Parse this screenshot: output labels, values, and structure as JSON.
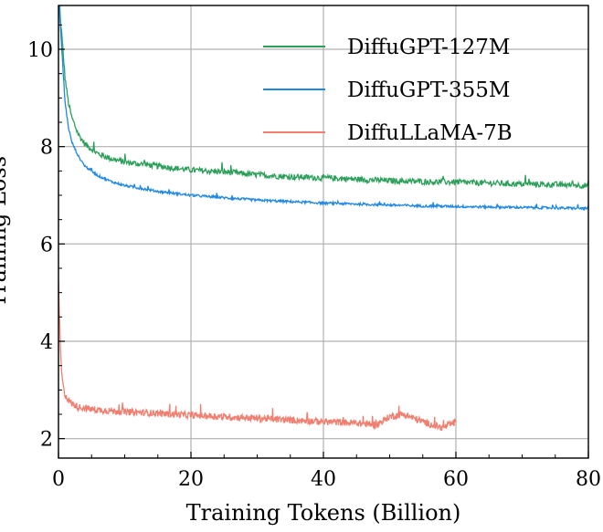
{
  "chart_data": {
    "type": "line",
    "title": "",
    "xlabel": "Training Tokens (Billion)",
    "ylabel": "Training Loss",
    "xlim": [
      0,
      80
    ],
    "ylim": [
      1.6,
      10.9
    ],
    "x_ticks": [
      0,
      20,
      40,
      60,
      80
    ],
    "y_ticks": [
      2,
      4,
      6,
      8,
      10
    ],
    "grid": true,
    "legend_position": "top-right",
    "series": [
      {
        "name": "DiffuGPT-127M",
        "color": "#2ca05a",
        "x": [
          0.1,
          0.5,
          1,
          1.5,
          2,
          3,
          4,
          6,
          8,
          10,
          15,
          20,
          25,
          30,
          35,
          40,
          45,
          50,
          55,
          60,
          65,
          70,
          75,
          80
        ],
        "y": [
          10.9,
          10.3,
          9.4,
          8.9,
          8.6,
          8.25,
          8.05,
          7.85,
          7.75,
          7.68,
          7.6,
          7.52,
          7.48,
          7.42,
          7.38,
          7.36,
          7.33,
          7.3,
          7.28,
          7.27,
          7.25,
          7.23,
          7.22,
          7.2
        ],
        "noise": 0.06
      },
      {
        "name": "DiffuGPT-355M",
        "color": "#1f88e6",
        "x": [
          0.1,
          0.5,
          1,
          1.5,
          2,
          3,
          4,
          6,
          8,
          10,
          15,
          20,
          25,
          30,
          35,
          40,
          45,
          50,
          55,
          60,
          65,
          70,
          75,
          80
        ],
        "y": [
          10.9,
          10.0,
          8.9,
          8.4,
          8.1,
          7.8,
          7.6,
          7.4,
          7.28,
          7.2,
          7.08,
          7.0,
          6.95,
          6.9,
          6.87,
          6.84,
          6.82,
          6.8,
          6.78,
          6.77,
          6.76,
          6.75,
          6.74,
          6.73
        ],
        "noise": 0.025
      },
      {
        "name": "DiffuLLaMA-7B",
        "color": "#f07f70",
        "x": [
          0,
          0.15,
          0.3,
          0.5,
          0.8,
          1,
          1.5,
          2,
          3,
          5,
          8,
          10,
          15,
          20,
          25,
          30,
          35,
          40,
          45,
          48,
          50,
          52,
          54,
          56,
          58,
          59,
          60
        ],
        "y": [
          5.2,
          4.5,
          3.8,
          3.3,
          3.0,
          2.9,
          2.8,
          2.72,
          2.65,
          2.6,
          2.57,
          2.55,
          2.52,
          2.48,
          2.45,
          2.42,
          2.38,
          2.35,
          2.32,
          2.28,
          2.45,
          2.5,
          2.4,
          2.3,
          2.22,
          2.28,
          2.35
        ],
        "noise": 0.07
      }
    ]
  }
}
